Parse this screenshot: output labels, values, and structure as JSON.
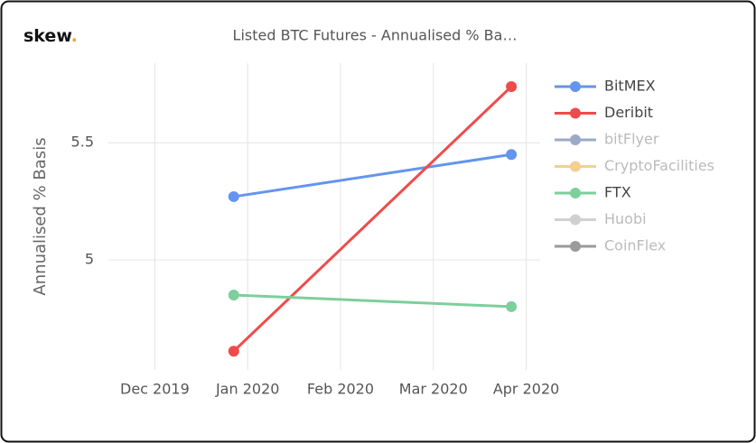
{
  "logo": {
    "word": "skew",
    "dot": "."
  },
  "chart_data": {
    "type": "line",
    "title": "Listed BTC Futures - Annualised % Ba…",
    "y_label": "Annualised % Basis",
    "x": [
      0.85,
      3.84
    ],
    "xlim": [
      -0.5,
      4.15
    ],
    "xticks": [
      {
        "value": 0,
        "label": "Dec 2019"
      },
      {
        "value": 1,
        "label": "Jan 2020"
      },
      {
        "value": 2,
        "label": "Feb 2020"
      },
      {
        "value": 3,
        "label": "Mar 2020"
      },
      {
        "value": 4,
        "label": "Apr 2020"
      }
    ],
    "ylim": [
      4.53,
      5.84
    ],
    "yticks": [
      5,
      5.5
    ],
    "grid": true,
    "legend": "right",
    "series": [
      {
        "name": "BitMEX",
        "color": "#6394ef",
        "values": [
          5.27,
          5.45
        ]
      },
      {
        "name": "Deribit",
        "color": "#ef4b4b",
        "values": [
          4.61,
          5.74
        ]
      },
      {
        "name": "bitFlyer",
        "color": "#9aaac8",
        "values": [
          null,
          null
        ],
        "visible": false
      },
      {
        "name": "CryptoFacilities",
        "color": "#f3d08e",
        "values": [
          null,
          null
        ],
        "visible": false
      },
      {
        "name": "FTX",
        "color": "#7dcf9b",
        "values": [
          4.85,
          4.8
        ]
      },
      {
        "name": "Huobi",
        "color": "#d0d0d0",
        "values": [
          null,
          null
        ],
        "visible": false
      },
      {
        "name": "CoinFlex",
        "color": "#9a9a9a",
        "values": [
          null,
          null
        ],
        "visible": false
      }
    ]
  }
}
